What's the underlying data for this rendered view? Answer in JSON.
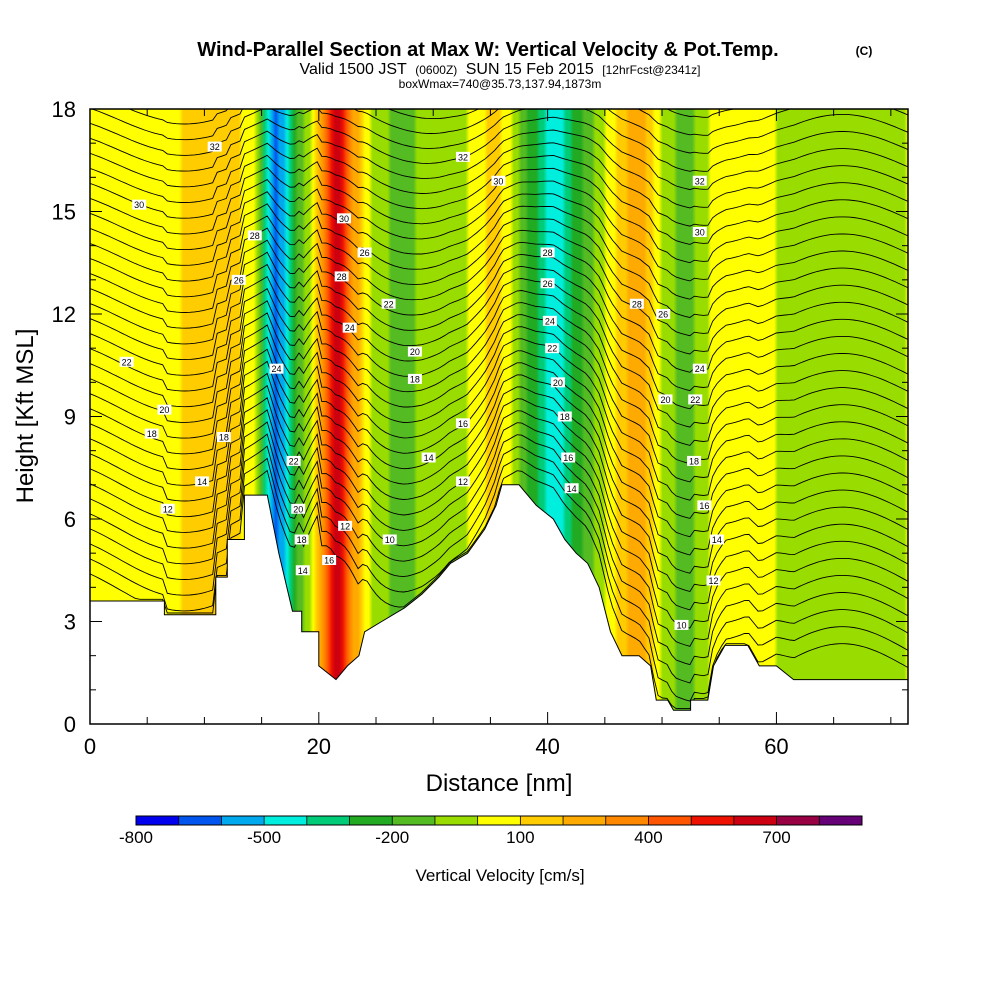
{
  "header": {
    "title": "Wind-Parallel Section at Max W: Vertical Velocity & Pot.Temp.",
    "copyright": "(C)",
    "valid_prefix": "Valid 1500 JST",
    "valid_utc": "(0600Z)",
    "valid_date": "SUN 15 Feb 2015",
    "forecast": "[12hrFcst@2341z]",
    "box": "boxWmax=740@35.73,137.94,1873m"
  },
  "chart_data": {
    "type": "heatmap",
    "title": "Wind-Parallel Section at Max W: Vertical Velocity & Pot.Temp.",
    "xlabel": "Distance [nm]",
    "ylabel": "Height [Kft MSL]",
    "xlim": [
      0,
      71.5
    ],
    "ylim": [
      0,
      18
    ],
    "xticks": [
      0,
      20,
      40,
      60
    ],
    "yticks": [
      0,
      3,
      6,
      9,
      12,
      15,
      18
    ],
    "colorbar": {
      "label": "Vertical Velocity [cm/s]",
      "levels": [
        -800,
        -700,
        -600,
        -500,
        -400,
        -300,
        -200,
        -100,
        0,
        100,
        200,
        300,
        400,
        500,
        600,
        700,
        800,
        900
      ],
      "tick_values": [
        -800,
        -500,
        -200,
        100,
        400,
        700
      ],
      "colors": [
        "#0000ee",
        "#0055ee",
        "#00a8ee",
        "#00eedd",
        "#00cc77",
        "#22aa22",
        "#55bb22",
        "#99dd00",
        "#ffff00",
        "#ffcc00",
        "#ffaa00",
        "#ff8800",
        "#ff5500",
        "#ee1100",
        "#cc0011",
        "#990044",
        "#660077"
      ]
    },
    "velocity_profile": [
      {
        "x": 0,
        "w": 0
      },
      {
        "x": 3,
        "w": 50
      },
      {
        "x": 8,
        "w": 100
      },
      {
        "x": 12,
        "w": 200
      },
      {
        "x": 14.5,
        "w": 0
      },
      {
        "x": 16.2,
        "w": -700
      },
      {
        "x": 18,
        "w": -200
      },
      {
        "x": 19.5,
        "w": 0
      },
      {
        "x": 21.5,
        "w": 700
      },
      {
        "x": 23,
        "w": 300
      },
      {
        "x": 24.5,
        "w": 0
      },
      {
        "x": 27,
        "w": -150
      },
      {
        "x": 30,
        "w": -50
      },
      {
        "x": 33,
        "w": 0
      },
      {
        "x": 35.5,
        "w": 150
      },
      {
        "x": 37,
        "w": 0
      },
      {
        "x": 39,
        "w": -300
      },
      {
        "x": 40.5,
        "w": -500
      },
      {
        "x": 42.5,
        "w": -250
      },
      {
        "x": 45,
        "w": 0
      },
      {
        "x": 48,
        "w": 300
      },
      {
        "x": 50,
        "w": 0
      },
      {
        "x": 52,
        "w": -150
      },
      {
        "x": 54,
        "w": 0
      },
      {
        "x": 56,
        "w": 50
      },
      {
        "x": 60,
        "w": 0
      },
      {
        "x": 63,
        "w": -50
      },
      {
        "x": 66,
        "w": 0
      },
      {
        "x": 68,
        "w": -100
      },
      {
        "x": 71.5,
        "w": 0
      }
    ],
    "terrain": [
      {
        "x": 0,
        "y": 3.6
      },
      {
        "x": 6.5,
        "y": 3.6
      },
      {
        "x": 6.5,
        "y": 3.2
      },
      {
        "x": 11,
        "y": 3.2
      },
      {
        "x": 11,
        "y": 4.3
      },
      {
        "x": 12,
        "y": 4.3
      },
      {
        "x": 12,
        "y": 5.4
      },
      {
        "x": 13.5,
        "y": 5.4
      },
      {
        "x": 13.5,
        "y": 6.7
      },
      {
        "x": 15.5,
        "y": 6.7
      },
      {
        "x": 16.5,
        "y": 5.0
      },
      {
        "x": 17.7,
        "y": 3.3
      },
      {
        "x": 18.5,
        "y": 3.3
      },
      {
        "x": 18.5,
        "y": 2.7
      },
      {
        "x": 20,
        "y": 2.7
      },
      {
        "x": 20,
        "y": 1.7
      },
      {
        "x": 21.5,
        "y": 1.3
      },
      {
        "x": 22.5,
        "y": 1.7
      },
      {
        "x": 23.5,
        "y": 2.0
      },
      {
        "x": 24,
        "y": 2.7
      },
      {
        "x": 25.5,
        "y": 3.0
      },
      {
        "x": 27.5,
        "y": 3.4
      },
      {
        "x": 29,
        "y": 3.8
      },
      {
        "x": 30.5,
        "y": 4.3
      },
      {
        "x": 31.5,
        "y": 4.7
      },
      {
        "x": 33,
        "y": 5.0
      },
      {
        "x": 34.5,
        "y": 5.7
      },
      {
        "x": 35.5,
        "y": 6.4
      },
      {
        "x": 36,
        "y": 7.0
      },
      {
        "x": 37.5,
        "y": 7.0
      },
      {
        "x": 39,
        "y": 6.4
      },
      {
        "x": 40.5,
        "y": 6.0
      },
      {
        "x": 41.5,
        "y": 5.4
      },
      {
        "x": 42.5,
        "y": 5.0
      },
      {
        "x": 43.5,
        "y": 4.7
      },
      {
        "x": 44.5,
        "y": 4.0
      },
      {
        "x": 45.5,
        "y": 2.7
      },
      {
        "x": 46.5,
        "y": 2.0
      },
      {
        "x": 48,
        "y": 2.0
      },
      {
        "x": 49,
        "y": 1.7
      },
      {
        "x": 49.5,
        "y": 0.7
      },
      {
        "x": 50.5,
        "y": 0.7
      },
      {
        "x": 51,
        "y": 0.4
      },
      {
        "x": 52.5,
        "y": 0.4
      },
      {
        "x": 52.5,
        "y": 0.7
      },
      {
        "x": 54,
        "y": 0.7
      },
      {
        "x": 54.5,
        "y": 1.7
      },
      {
        "x": 55.5,
        "y": 2.3
      },
      {
        "x": 57.5,
        "y": 2.3
      },
      {
        "x": 58.5,
        "y": 1.7
      },
      {
        "x": 60,
        "y": 1.7
      },
      {
        "x": 61.5,
        "y": 1.3
      },
      {
        "x": 71.5,
        "y": 1.3
      },
      {
        "x": 71.5,
        "y": 1.0
      }
    ],
    "contour_labels": [
      {
        "text": "32",
        "x": 10.9,
        "y": 16.9
      },
      {
        "text": "30",
        "x": 4.3,
        "y": 15.2
      },
      {
        "text": "28",
        "x": 14.4,
        "y": 14.3
      },
      {
        "text": "26",
        "x": 13.0,
        "y": 13.0
      },
      {
        "text": "22",
        "x": 3.2,
        "y": 10.6
      },
      {
        "text": "20",
        "x": 6.5,
        "y": 9.2
      },
      {
        "text": "18",
        "x": 5.4,
        "y": 8.5
      },
      {
        "text": "18",
        "x": 11.7,
        "y": 8.4
      },
      {
        "text": "14",
        "x": 9.8,
        "y": 7.1
      },
      {
        "text": "12",
        "x": 6.8,
        "y": 6.3
      },
      {
        "text": "24",
        "x": 16.3,
        "y": 10.4
      },
      {
        "text": "22",
        "x": 17.8,
        "y": 7.7
      },
      {
        "text": "20",
        "x": 18.2,
        "y": 6.3
      },
      {
        "text": "18",
        "x": 18.5,
        "y": 5.4
      },
      {
        "text": "14",
        "x": 18.6,
        "y": 4.5
      },
      {
        "text": "16",
        "x": 20.9,
        "y": 4.8
      },
      {
        "text": "12",
        "x": 22.3,
        "y": 5.8
      },
      {
        "text": "30",
        "x": 22.2,
        "y": 14.8
      },
      {
        "text": "28",
        "x": 22.0,
        "y": 13.1
      },
      {
        "text": "26",
        "x": 24.0,
        "y": 13.8
      },
      {
        "text": "24",
        "x": 22.7,
        "y": 11.6
      },
      {
        "text": "22",
        "x": 26.1,
        "y": 12.3
      },
      {
        "text": "20",
        "x": 28.4,
        "y": 10.9
      },
      {
        "text": "18",
        "x": 28.4,
        "y": 10.1
      },
      {
        "text": "16",
        "x": 32.6,
        "y": 8.8
      },
      {
        "text": "14",
        "x": 29.6,
        "y": 7.8
      },
      {
        "text": "12",
        "x": 32.6,
        "y": 7.1
      },
      {
        "text": "10",
        "x": 26.2,
        "y": 5.4
      },
      {
        "text": "32",
        "x": 32.6,
        "y": 16.6
      },
      {
        "text": "30",
        "x": 35.7,
        "y": 15.9
      },
      {
        "text": "28",
        "x": 40.0,
        "y": 13.8
      },
      {
        "text": "26",
        "x": 40.0,
        "y": 12.9
      },
      {
        "text": "24",
        "x": 40.2,
        "y": 11.8
      },
      {
        "text": "22",
        "x": 40.4,
        "y": 11.0
      },
      {
        "text": "20",
        "x": 40.9,
        "y": 10.0
      },
      {
        "text": "18",
        "x": 41.5,
        "y": 9.0
      },
      {
        "text": "16",
        "x": 41.8,
        "y": 7.8
      },
      {
        "text": "14",
        "x": 42.1,
        "y": 6.9
      },
      {
        "text": "28",
        "x": 47.8,
        "y": 12.3
      },
      {
        "text": "26",
        "x": 50.1,
        "y": 12.0
      },
      {
        "text": "32",
        "x": 53.3,
        "y": 15.9
      },
      {
        "text": "30",
        "x": 53.3,
        "y": 14.4
      },
      {
        "text": "24",
        "x": 53.3,
        "y": 10.4
      },
      {
        "text": "22",
        "x": 52.9,
        "y": 9.5
      },
      {
        "text": "20",
        "x": 50.3,
        "y": 9.5
      },
      {
        "text": "18",
        "x": 52.8,
        "y": 7.7
      },
      {
        "text": "16",
        "x": 53.7,
        "y": 6.4
      },
      {
        "text": "14",
        "x": 54.8,
        "y": 5.4
      },
      {
        "text": "12",
        "x": 54.5,
        "y": 4.2
      },
      {
        "text": "10",
        "x": 51.7,
        "y": 2.9
      }
    ]
  }
}
